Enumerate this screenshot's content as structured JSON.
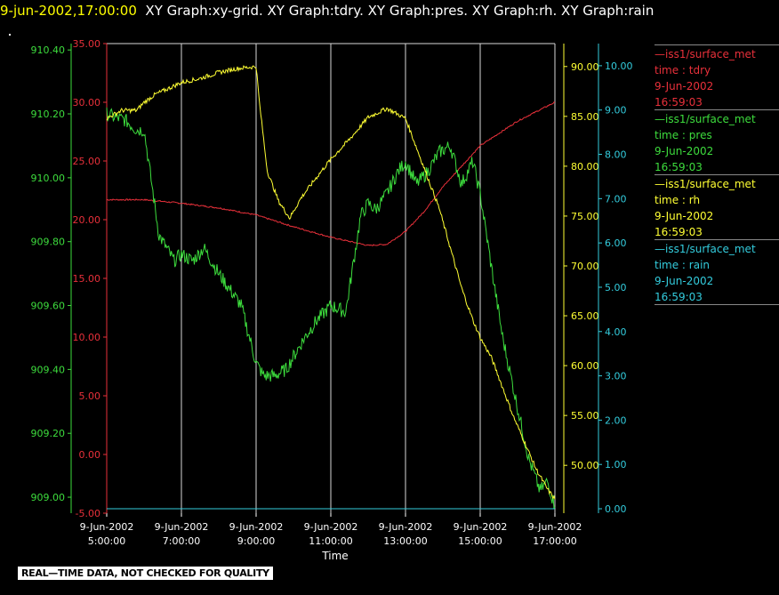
{
  "header": {
    "timestamp": "9-jun-2002,17:00:00",
    "graphs": "XY Graph:xy-grid.  XY Graph:tdry.  XY Graph:pres.  XY Graph:rh.  XY Graph:rain"
  },
  "legend": [
    {
      "line1": "—iss1/surface_met",
      "line2": "time : tdry",
      "line3": "9-Jun-2002",
      "line4": "16:59:03",
      "color": "#e8303a"
    },
    {
      "line1": "—iss1/surface_met",
      "line2": "time : pres",
      "line3": "9-Jun-2002",
      "line4": "16:59:03",
      "color": "#3ddc3d"
    },
    {
      "line1": "—iss1/surface_met",
      "line2": "time : rh",
      "line3": "9-Jun-2002",
      "line4": "16:59:03",
      "color": "#ffff33"
    },
    {
      "line1": "—iss1/surface_met",
      "line2": "time : rain",
      "line3": "9-Jun-2002",
      "line4": "16:59:03",
      "color": "#33ccdd"
    }
  ],
  "disclaimer": "REAL—TIME DATA, NOT CHECKED FOR QUALITY",
  "chart_data": {
    "type": "line",
    "xlabel": "Time",
    "x_ticks": [
      {
        "date": "9-Jun-2002",
        "time": "5:00:00",
        "hour": 5
      },
      {
        "date": "9-Jun-2002",
        "time": "7:00:00",
        "hour": 7
      },
      {
        "date": "9-Jun-2002",
        "time": "9:00:00",
        "hour": 9
      },
      {
        "date": "9-Jun-2002",
        "time": "11:00:00",
        "hour": 11
      },
      {
        "date": "9-Jun-2002",
        "time": "13:00:00",
        "hour": 13
      },
      {
        "date": "9-Jun-2002",
        "time": "15:00:00",
        "hour": 15
      },
      {
        "date": "9-Jun-2002",
        "time": "17:00:00",
        "hour": 17
      }
    ],
    "xlim": [
      5,
      17
    ],
    "grid": true,
    "axes": {
      "pres": {
        "ticks": [
          "909.00",
          "909.20",
          "909.40",
          "909.60",
          "909.80",
          "910.00",
          "910.20",
          "910.40"
        ],
        "ylim": [
          908.95,
          910.42
        ],
        "color": "#3ddc3d"
      },
      "tdry": {
        "ticks": [
          "-5.00",
          "0.00",
          "5.00",
          "10.00",
          "15.00",
          "20.00",
          "25.00",
          "30.00",
          "35.00"
        ],
        "ylim": [
          -5,
          35
        ],
        "color": "#e8303a"
      },
      "rh": {
        "ticks": [
          "50.00",
          "55.00",
          "60.00",
          "65.00",
          "70.00",
          "75.00",
          "80.00",
          "85.00",
          "90.00"
        ],
        "ylim": [
          45.2,
          92.3
        ],
        "color": "#ffff33"
      },
      "rain": {
        "ticks": [
          "0.00",
          "1.00",
          "2.00",
          "3.00",
          "4.00",
          "5.00",
          "6.00",
          "7.00",
          "8.00",
          "9.00",
          "10.00"
        ],
        "ylim": [
          -0.1,
          10.5
        ],
        "color": "#33ccdd"
      }
    },
    "series": [
      {
        "key": "tdry",
        "color": "#e8303a",
        "x": [
          5,
          6,
          7,
          8,
          9,
          9.5,
          10,
          11,
          12,
          12.5,
          13,
          13.5,
          14,
          15,
          16,
          17
        ],
        "y": [
          21.7,
          21.7,
          21.4,
          21.0,
          20.4,
          19.9,
          19.4,
          18.5,
          17.8,
          17.9,
          19.0,
          20.7,
          22.8,
          26.3,
          28.4,
          30.0
        ]
      },
      {
        "key": "pres",
        "color": "#3ddc3d",
        "x": [
          5,
          5.2,
          5.5,
          5.8,
          6,
          6.4,
          6.8,
          7,
          7.3,
          7.6,
          8,
          8.3,
          8.6,
          9,
          9.2,
          9.5,
          9.8,
          10,
          10.3,
          10.6,
          11,
          11.4,
          11.8,
          12,
          12.2,
          12.5,
          12.8,
          13,
          13.3,
          13.6,
          13.9,
          14.2,
          14.5,
          14.8,
          15,
          15.3,
          15.6,
          16,
          16.3,
          16.6,
          16.8,
          17
        ],
        "y": [
          910.2,
          910.19,
          910.18,
          910.15,
          910.15,
          909.82,
          909.74,
          909.76,
          909.74,
          909.78,
          909.7,
          909.65,
          909.6,
          909.42,
          909.38,
          909.38,
          909.4,
          909.44,
          909.5,
          909.55,
          909.6,
          909.58,
          909.88,
          909.92,
          909.9,
          909.95,
          910.02,
          910.05,
          909.98,
          910.02,
          910.08,
          910.1,
          909.98,
          910.05,
          909.95,
          909.72,
          909.5,
          909.28,
          909.12,
          909.02,
          909.05,
          908.97
        ]
      },
      {
        "key": "rh",
        "color": "#ffff33",
        "x": [
          5,
          5.4,
          5.8,
          6,
          6.3,
          6.6,
          7,
          7.5,
          8,
          8.5,
          9,
          9.1,
          9.3,
          9.6,
          9.9,
          10.2,
          10.6,
          11,
          11.5,
          12,
          12.5,
          13,
          13.3,
          13.6,
          13.9,
          14.2,
          14.5,
          14.8,
          15,
          15.3,
          15.6,
          15.9,
          16.2,
          16.5,
          16.8,
          17
        ],
        "y": [
          84.8,
          85.6,
          85.6,
          86.4,
          87.2,
          87.7,
          88.4,
          88.8,
          89.4,
          89.8,
          90.0,
          86.0,
          79.5,
          76.5,
          74.8,
          76.8,
          78.8,
          80.7,
          82.7,
          84.9,
          85.8,
          84.8,
          81.8,
          78.8,
          75.8,
          71.8,
          67.8,
          64.6,
          62.8,
          60.8,
          57.8,
          54.8,
          52.2,
          49.6,
          47.6,
          46.6
        ]
      },
      {
        "key": "rain",
        "color": "#33ccdd",
        "x": [
          5,
          17
        ],
        "y": [
          0,
          0
        ]
      }
    ]
  }
}
